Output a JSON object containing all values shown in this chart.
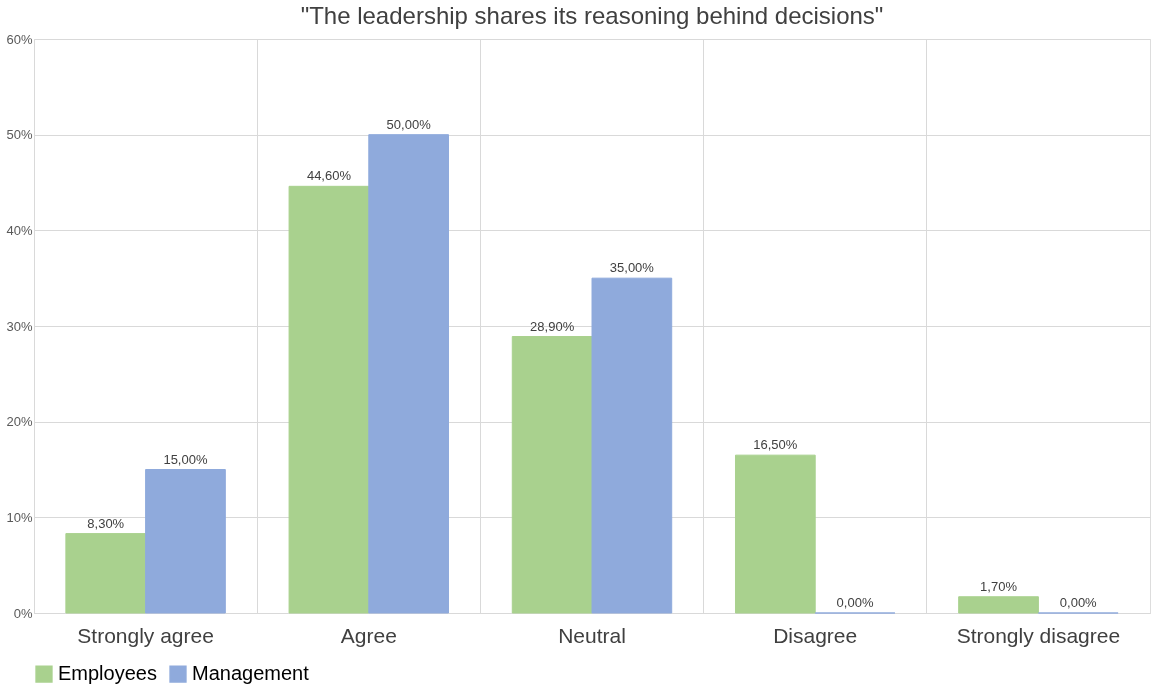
{
  "chart_data": {
    "type": "bar",
    "title": "\"The leadership shares its reasoning behind decisions\"",
    "categories": [
      "Strongly agree",
      "Agree",
      "Neutral",
      "Disagree",
      "Strongly disagree"
    ],
    "series": [
      {
        "name": "Employees",
        "color": "#a9d18e",
        "values": [
          8.3,
          44.6,
          28.9,
          16.5,
          1.7
        ],
        "value_labels": [
          "8,30%",
          "44,60%",
          "28,90%",
          "16,50%",
          "1,70%"
        ]
      },
      {
        "name": "Management",
        "color": "#8faadc",
        "values": [
          15,
          50,
          35,
          0,
          0
        ],
        "value_labels": [
          "15,00%",
          "50,00%",
          "35,00%",
          "0,00%",
          "0,00%"
        ]
      }
    ],
    "ylim": [
      0,
      60
    ],
    "yticks": [
      {
        "value": 0,
        "label": "0%"
      },
      {
        "value": 10,
        "label": "10%"
      },
      {
        "value": 20,
        "label": "20%"
      },
      {
        "value": 30,
        "label": "30%"
      },
      {
        "value": 40,
        "label": "40%"
      },
      {
        "value": 50,
        "label": "50%"
      },
      {
        "value": 60,
        "label": "60%"
      }
    ],
    "grid": true,
    "legend": "bottom"
  }
}
